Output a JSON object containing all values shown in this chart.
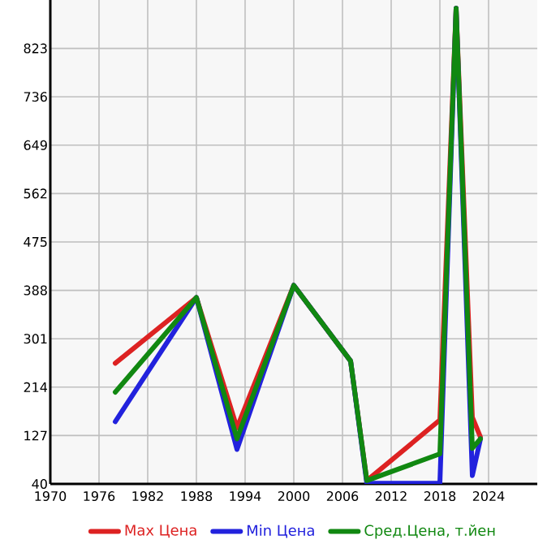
{
  "chart_data": {
    "type": "line",
    "x": [
      1978,
      1988,
      1993,
      2000,
      2007,
      2009,
      2018,
      2020,
      2022,
      2023
    ],
    "series": [
      {
        "name": "Max Цена",
        "color": "#dd2222",
        "values": [
          257,
          375,
          141,
          397,
          261,
          46,
          155,
          895,
          160,
          124
        ]
      },
      {
        "name": "Min Цена",
        "color": "#2222dd",
        "values": [
          152,
          375,
          102,
          397,
          261,
          41,
          41,
          895,
          55,
          121
        ]
      },
      {
        "name": "Сред.Цена, т.йен",
        "color": "#118811",
        "values": [
          205,
          375,
          121,
          397,
          261,
          46,
          94,
          895,
          104,
          121
        ]
      }
    ],
    "xlim": [
      1970,
      2030
    ],
    "ylim": [
      40,
      910
    ],
    "xticks": [
      1970,
      1976,
      1982,
      1988,
      1994,
      2000,
      2006,
      2012,
      2018,
      2024
    ],
    "yticks": [
      40,
      127,
      214,
      301,
      388,
      475,
      562,
      649,
      736,
      823
    ],
    "grid": true,
    "legend": "bottom",
    "marker": "none",
    "line_style": "solid"
  }
}
